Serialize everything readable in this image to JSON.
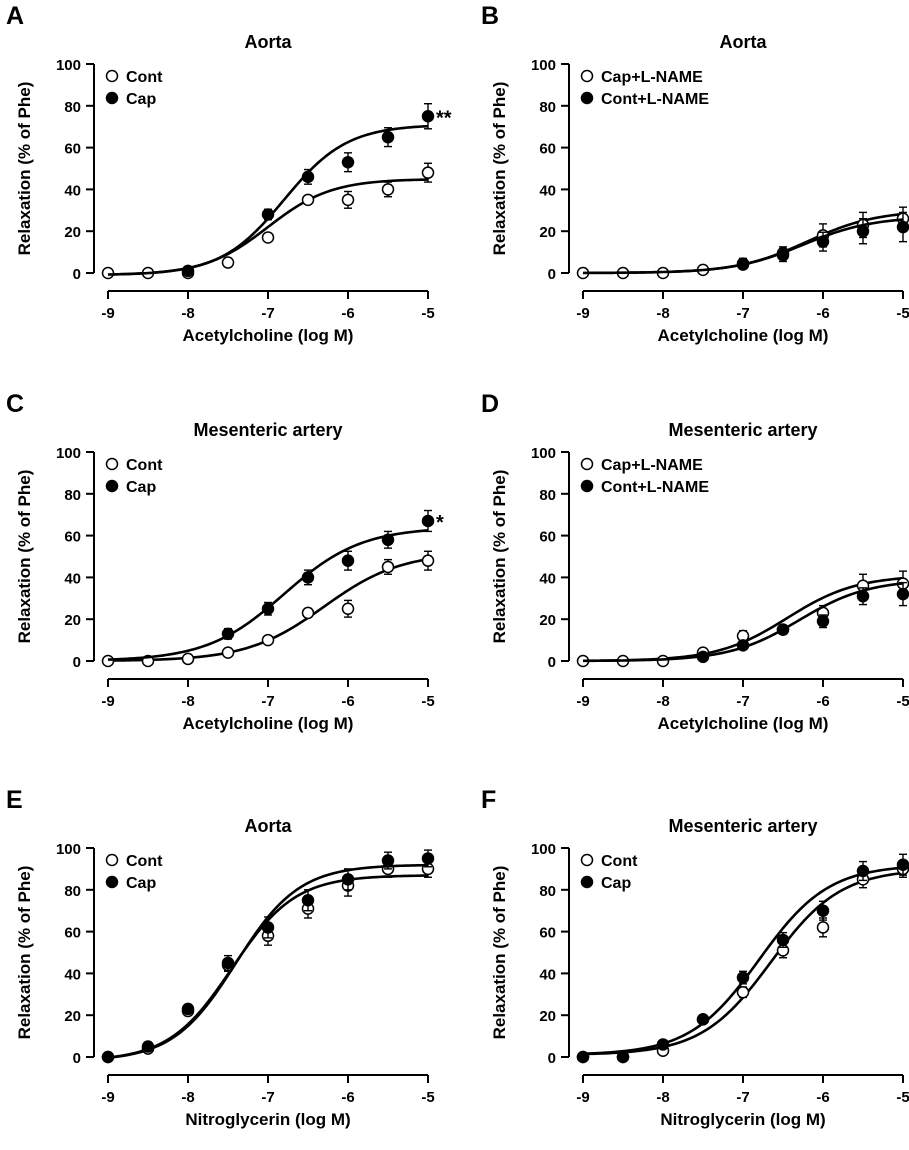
{
  "chart_data": [
    {
      "panel": "A",
      "type": "line",
      "title": "Aorta",
      "xlabel": "Acetylcholine (log M)",
      "ylabel": "Relaxation (% of Phe)",
      "xlim": [
        -9,
        -5
      ],
      "ylim": [
        0,
        100
      ],
      "xticks": [
        -9,
        -8,
        -7,
        -6,
        -5
      ],
      "yticks": [
        0,
        20,
        40,
        60,
        80,
        100
      ],
      "annotation": "**",
      "series": [
        {
          "name": "Cont",
          "marker": "open",
          "x": [
            -9,
            -8.5,
            -8,
            -7.5,
            -7,
            -6.5,
            -6,
            -5.5,
            -5
          ],
          "y": [
            0,
            0,
            0,
            5,
            17,
            35,
            35,
            40,
            48
          ],
          "err": [
            0.5,
            0.5,
            0.5,
            1,
            1.5,
            2,
            4,
            3.5,
            4.5
          ],
          "fit": {
            "bottom": -1,
            "top": 45,
            "logEC50": -7,
            "slope": 1.1
          }
        },
        {
          "name": "Cap",
          "marker": "filled",
          "x": [
            -8,
            -7,
            -6.5,
            -6,
            -5.5,
            -5
          ],
          "y": [
            1,
            28,
            46,
            53,
            65,
            75
          ],
          "err": [
            0.5,
            2.5,
            3.5,
            4.5,
            4.5,
            6
          ],
          "fit": {
            "bottom": -1,
            "top": 71,
            "logEC50": -6.8,
            "slope": 1.1
          }
        }
      ]
    },
    {
      "panel": "B",
      "type": "line",
      "title": "Aorta",
      "xlabel": "Acetylcholine (log M)",
      "ylabel": "Relaxation (% of Phe)",
      "xlim": [
        -9,
        -5
      ],
      "ylim": [
        0,
        100
      ],
      "xticks": [
        -9,
        -8,
        -7,
        -6,
        -5
      ],
      "yticks": [
        0,
        20,
        40,
        60,
        80,
        100
      ],
      "annotation": "",
      "series": [
        {
          "name": "Cap+L-NAME",
          "marker": "open",
          "x": [
            -9,
            -8.5,
            -8,
            -7.5,
            -7,
            -6.5,
            -6,
            -5.5,
            -5
          ],
          "y": [
            0,
            0,
            0,
            1.5,
            4.5,
            9.5,
            18,
            23,
            26
          ],
          "err": [
            0.5,
            0.5,
            0.5,
            1.5,
            2.5,
            3,
            5.5,
            6,
            5.5
          ],
          "fit": {
            "bottom": 0,
            "top": 30,
            "logEC50": -6.2,
            "slope": 1
          }
        },
        {
          "name": "Cont+L-NAME",
          "marker": "filled",
          "x": [
            -7,
            -6.5,
            -6,
            -5.5,
            -5
          ],
          "y": [
            4,
            8.5,
            15,
            20,
            22
          ],
          "err": [
            2,
            3,
            4.5,
            6,
            7
          ],
          "fit": {
            "bottom": 0,
            "top": 27,
            "logEC50": -6.25,
            "slope": 1
          }
        }
      ]
    },
    {
      "panel": "C",
      "type": "line",
      "title": "Mesenteric artery",
      "xlabel": "Acetylcholine (log M)",
      "ylabel": "Relaxation (% of Phe)",
      "xlim": [
        -9,
        -5
      ],
      "ylim": [
        0,
        100
      ],
      "xticks": [
        -9,
        -8,
        -7,
        -6,
        -5
      ],
      "yticks": [
        0,
        20,
        40,
        60,
        80,
        100
      ],
      "annotation": "*",
      "series": [
        {
          "name": "Cont",
          "marker": "open",
          "x": [
            -9,
            -8.5,
            -8,
            -7.5,
            -7,
            -6.5,
            -6,
            -5.5,
            -5
          ],
          "y": [
            0,
            0,
            1,
            4,
            10,
            23,
            25,
            45,
            48
          ],
          "err": [
            0.5,
            0.5,
            1,
            1,
            1.5,
            2,
            4,
            3.5,
            4.5
          ],
          "fit": {
            "bottom": 0,
            "top": 52,
            "logEC50": -6.3,
            "slope": 0.9
          }
        },
        {
          "name": "Cap",
          "marker": "filled",
          "x": [
            -7.5,
            -7,
            -6.5,
            -6,
            -5.5,
            -5
          ],
          "y": [
            13,
            25,
            40,
            48,
            58,
            67
          ],
          "err": [
            2.5,
            3,
            3.5,
            4.5,
            4,
            5
          ],
          "fit": {
            "bottom": 0,
            "top": 64,
            "logEC50": -6.8,
            "slope": 0.9
          }
        }
      ]
    },
    {
      "panel": "D",
      "type": "line",
      "title": "Mesenteric artery",
      "xlabel": "Acetylcholine (log M)",
      "ylabel": "Relaxation (% of Phe)",
      "xlim": [
        -9,
        -5
      ],
      "ylim": [
        0,
        100
      ],
      "xticks": [
        -9,
        -8,
        -7,
        -6,
        -5
      ],
      "yticks": [
        0,
        20,
        40,
        60,
        80,
        100
      ],
      "annotation": "",
      "series": [
        {
          "name": "Cap+L-NAME",
          "marker": "open",
          "x": [
            -9,
            -8.5,
            -8,
            -7.5,
            -7,
            -6.5,
            -6,
            -5.5,
            -5
          ],
          "y": [
            0,
            0,
            0,
            4,
            12,
            15,
            23,
            36,
            37
          ],
          "err": [
            0.5,
            0.5,
            0.5,
            1,
            2.5,
            2,
            3.5,
            5.5,
            6
          ],
          "fit": {
            "bottom": 0,
            "top": 41,
            "logEC50": -6.45,
            "slope": 1
          }
        },
        {
          "name": "Cont+L-NAME",
          "marker": "filled",
          "x": [
            -7.5,
            -7,
            -6.5,
            -6,
            -5.5,
            -5
          ],
          "y": [
            2,
            7.5,
            15,
            19,
            31,
            32
          ],
          "err": [
            1,
            1.5,
            2,
            3,
            4,
            5.5
          ],
          "fit": {
            "bottom": 0,
            "top": 39,
            "logEC50": -6.3,
            "slope": 1
          }
        }
      ]
    },
    {
      "panel": "E",
      "type": "line",
      "title": "Aorta",
      "xlabel": "Nitroglycerin (log M)",
      "ylabel": "Relaxation (% of Phe)",
      "xlim": [
        -9,
        -5
      ],
      "ylim": [
        0,
        100
      ],
      "xticks": [
        -9,
        -8,
        -7,
        -6,
        -5
      ],
      "yticks": [
        0,
        20,
        40,
        60,
        80,
        100
      ],
      "annotation": "",
      "series": [
        {
          "name": "Cont",
          "marker": "open",
          "x": [
            -9,
            -8.5,
            -8,
            -7.5,
            -7,
            -6.5,
            -6,
            -5.5,
            -5
          ],
          "y": [
            0,
            4,
            22,
            44,
            58,
            71,
            82,
            90,
            90
          ],
          "err": [
            0.5,
            1,
            1.5,
            3,
            4.5,
            4.5,
            5,
            4,
            4
          ],
          "fit": {
            "bottom": -2,
            "top": 87,
            "logEC50": -7.45,
            "slope": 1.1
          }
        },
        {
          "name": "Cap",
          "marker": "filled",
          "x": [
            -9,
            -8.5,
            -8,
            -7.5,
            -7,
            -6.5,
            -6,
            -5.5,
            -5
          ],
          "y": [
            0,
            5,
            23,
            45,
            62,
            75,
            85,
            94,
            95
          ],
          "err": [
            0.5,
            1,
            1.5,
            3.5,
            5,
            5,
            5,
            4,
            4
          ],
          "fit": {
            "bottom": -2,
            "top": 92,
            "logEC50": -7.4,
            "slope": 1.1
          }
        }
      ]
    },
    {
      "panel": "F",
      "type": "line",
      "title": "Mesenteric artery",
      "xlabel": "Nitroglycerin (log M)",
      "ylabel": "Relaxation (% of Phe)",
      "xlim": [
        -9,
        -5
      ],
      "ylim": [
        0,
        100
      ],
      "xticks": [
        -9,
        -8,
        -7,
        -6,
        -5
      ],
      "yticks": [
        0,
        20,
        40,
        60,
        80,
        100
      ],
      "annotation": "",
      "series": [
        {
          "name": "Cont",
          "marker": "open",
          "x": [
            -9,
            -8.5,
            -8,
            -7.5,
            -7,
            -6.5,
            -6,
            -5.5,
            -5
          ],
          "y": [
            0,
            0,
            3,
            18,
            31,
            51,
            62,
            85,
            90
          ],
          "err": [
            0.5,
            0.5,
            1,
            1.5,
            2.5,
            3.5,
            4.5,
            4,
            4
          ],
          "fit": {
            "bottom": 1,
            "top": 90,
            "logEC50": -6.65,
            "slope": 1
          }
        },
        {
          "name": "Cap",
          "marker": "filled",
          "x": [
            -9,
            -8.5,
            -8,
            -7.5,
            -7,
            -6.5,
            -6,
            -5.5,
            -5
          ],
          "y": [
            0,
            0,
            6,
            18,
            38,
            56,
            70,
            89,
            92
          ],
          "err": [
            0.5,
            0.5,
            1,
            1.5,
            3,
            3.5,
            4.5,
            4.5,
            5
          ],
          "fit": {
            "bottom": 1,
            "top": 92,
            "logEC50": -6.8,
            "slope": 1
          }
        }
      ]
    }
  ]
}
